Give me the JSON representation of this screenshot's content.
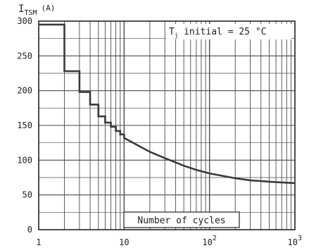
{
  "chart_data": {
    "type": "line",
    "title": "",
    "ylabel": {
      "symbol": "I",
      "subscript": "TSM",
      "unit": "(A)"
    },
    "xlabel": "Number of cycles",
    "annotation": {
      "prefix": "T",
      "subscript": "j",
      "text": " initial = 25 °C"
    },
    "x_scale": "log",
    "xlim": [
      1,
      1000
    ],
    "ylim": [
      0,
      300
    ],
    "x_ticks": [
      {
        "value": 1,
        "label": "1"
      },
      {
        "value": 10,
        "label": "10"
      },
      {
        "value": 100,
        "label": "10",
        "exp": "2"
      },
      {
        "value": 1000,
        "label": "10",
        "exp": "3"
      }
    ],
    "y_ticks": [
      {
        "value": 0,
        "label": "0"
      },
      {
        "value": 50,
        "label": "50"
      },
      {
        "value": 100,
        "label": "100"
      },
      {
        "value": 150,
        "label": "150"
      },
      {
        "value": 200,
        "label": "200"
      },
      {
        "value": 250,
        "label": "250"
      },
      {
        "value": 300,
        "label": "300"
      }
    ],
    "grid": true,
    "step": true,
    "series": [
      {
        "x": [
          1,
          2,
          3,
          4,
          5,
          6,
          7,
          8,
          9,
          10,
          20,
          30,
          50,
          70,
          100,
          200,
          300,
          500,
          700,
          1000
        ],
        "y": [
          295,
          228,
          198,
          180,
          163,
          154,
          148,
          142,
          137,
          132,
          112,
          103,
          92,
          86,
          81,
          74,
          71,
          69,
          68,
          67
        ]
      }
    ],
    "colors": {
      "curve": "#3a3a3a",
      "grid": "#4a4a4a",
      "frame": "#222222"
    }
  }
}
